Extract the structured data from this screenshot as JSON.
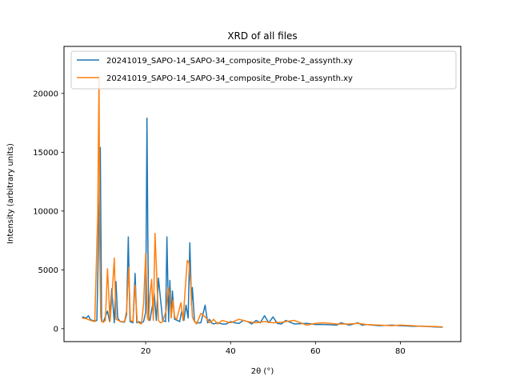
{
  "chart_data": {
    "type": "line",
    "title": "XRD of all files",
    "xlabel": "2θ (°)",
    "ylabel": "Intensity (arbitrary units)",
    "xlim": [
      0.75,
      94.25
    ],
    "ylim": [
      -1100,
      24000
    ],
    "x_ticks": [
      20,
      40,
      60,
      80
    ],
    "y_ticks": [
      0,
      5000,
      10000,
      15000,
      20000
    ],
    "x_tick_labels": [
      "20",
      "40",
      "60",
      "80"
    ],
    "y_tick_labels": [
      "0",
      "5000",
      "10000",
      "15000",
      "20000"
    ],
    "grid": false,
    "legend_position": "top-right",
    "series": [
      {
        "name": "20241019_SAPO-14_SAPO-34_composite_Probe-2_assynth.xy",
        "color": "#1f77b4",
        "x": [
          5,
          6,
          6.5,
          7,
          8,
          8.5,
          9,
          9.3,
          9.5,
          9.6,
          9.7,
          10,
          11,
          11.5,
          12,
          12.6,
          13,
          13.4,
          14,
          15,
          15.5,
          15.9,
          16.3,
          17,
          17.5,
          17.9,
          18.3,
          19,
          19.5,
          20,
          20.3,
          20.5,
          20.7,
          21,
          21.6,
          22,
          22.5,
          23,
          24,
          24.7,
          25,
          25.4,
          25.7,
          26,
          26.3,
          26.8,
          27.5,
          28,
          28.5,
          29,
          29.5,
          30,
          30.4,
          30.8,
          31,
          31.5,
          32,
          33,
          34,
          34.6,
          35,
          35.5,
          36,
          37,
          38,
          39,
          40,
          41,
          42,
          43,
          44,
          45,
          46,
          47,
          48,
          49,
          50,
          51,
          52,
          53,
          55,
          58,
          60,
          62,
          65,
          66,
          68,
          70,
          71,
          72,
          75,
          78,
          80,
          83,
          85,
          88,
          90
        ],
        "values": [
          1000,
          900,
          1100,
          750,
          650,
          700,
          9800,
          15400,
          6000,
          900,
          600,
          550,
          1500,
          600,
          3400,
          500,
          4000,
          900,
          600,
          550,
          1200,
          7800,
          600,
          500,
          4700,
          500,
          600,
          500,
          600,
          1400,
          17900,
          8000,
          900,
          700,
          2000,
          3000,
          700,
          4300,
          700,
          600,
          7800,
          600,
          4100,
          1000,
          3200,
          800,
          700,
          600,
          1500,
          700,
          2000,
          900,
          7300,
          2000,
          3500,
          600,
          500,
          500,
          2000,
          500,
          800,
          500,
          400,
          500,
          400,
          400,
          600,
          500,
          450,
          700,
          600,
          400,
          700,
          500,
          1100,
          500,
          1000,
          450,
          400,
          700,
          400,
          450,
          350,
          350,
          300,
          500,
          300,
          500,
          300,
          350,
          250,
          300,
          250,
          200,
          220,
          150,
          120
        ]
      },
      {
        "name": "20241019_SAPO-14_SAPO-34_composite_Probe-1_assynth.xy",
        "color": "#ff7f0e",
        "x": [
          5,
          6,
          7,
          8,
          8.7,
          9,
          9.2,
          9.4,
          9.6,
          10,
          10.5,
          11,
          11.6,
          12,
          12.6,
          13,
          13.6,
          14,
          15,
          15.5,
          16,
          16.4,
          17,
          17.5,
          18,
          18.4,
          19,
          19.5,
          20,
          20.4,
          20.7,
          21,
          21.4,
          21.8,
          22.2,
          22.6,
          23,
          23.5,
          24,
          24.8,
          25.3,
          25.7,
          26,
          26.4,
          26.8,
          27.3,
          27.8,
          28.3,
          28.8,
          29.3,
          29.8,
          30.2,
          30.6,
          31,
          31.5,
          32,
          33,
          34,
          34.5,
          35,
          35.5,
          36,
          37,
          38,
          40,
          42,
          44,
          46,
          48,
          50,
          52,
          55,
          58,
          60,
          62,
          65,
          68,
          70,
          72,
          75,
          78,
          80,
          83,
          85,
          88,
          90
        ],
        "values": [
          900,
          850,
          700,
          600,
          9800,
          21300,
          6000,
          1000,
          600,
          550,
          700,
          5100,
          600,
          2500,
          6000,
          800,
          700,
          600,
          600,
          1500,
          5200,
          700,
          600,
          3700,
          600,
          500,
          400,
          2100,
          6400,
          900,
          700,
          2800,
          4200,
          700,
          8100,
          4500,
          700,
          500,
          600,
          1500,
          3500,
          2800,
          900,
          2400,
          1000,
          800,
          1500,
          2200,
          700,
          3300,
          5800,
          5600,
          3800,
          1000,
          600,
          400,
          1300,
          1000,
          800,
          500,
          600,
          800,
          400,
          700,
          500,
          800,
          600,
          500,
          600,
          500,
          550,
          700,
          300,
          450,
          500,
          400,
          400,
          450,
          350,
          300,
          250,
          300,
          250,
          200,
          180,
          150
        ]
      }
    ]
  }
}
